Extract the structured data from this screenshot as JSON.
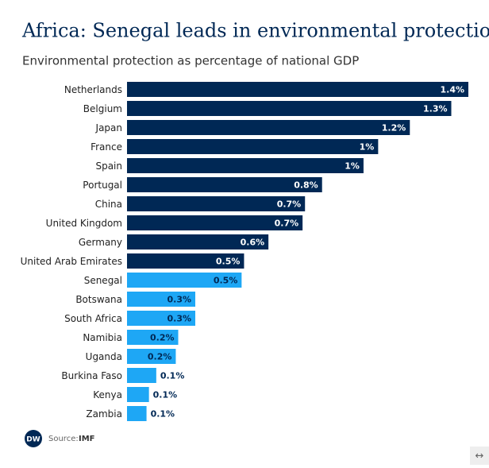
{
  "chart_data": {
    "type": "bar",
    "orientation": "horizontal",
    "title": "Africa: Senegal leads in environmental protection",
    "subtitle": "Environmental protection as percentage of national GDP",
    "categories": [
      "Netherlands",
      "Belgium",
      "Japan",
      "France",
      "Spain",
      "Portugal",
      "China",
      "United Kingdom",
      "Germany",
      "United Arab Emirates",
      "Senegal",
      "Botswana",
      "South Africa",
      "Namibia",
      "Uganda",
      "Burkina Faso",
      "Kenya",
      "Zambia"
    ],
    "values": [
      1.4,
      1.33,
      1.16,
      1.03,
      0.97,
      0.8,
      0.73,
      0.72,
      0.58,
      0.48,
      0.47,
      0.28,
      0.28,
      0.21,
      0.2,
      0.12,
      0.09,
      0.08
    ],
    "value_labels": [
      "1.4%",
      "1.3%",
      "1.2%",
      "1%",
      "1%",
      "0.8%",
      "0.7%",
      "0.7%",
      "0.6%",
      "0.5%",
      "0.5%",
      "0.3%",
      "0.3%",
      "0.2%",
      "0.2%",
      "0.1%",
      "0.1%",
      "0.1%"
    ],
    "colors": [
      "#002855",
      "#002855",
      "#002855",
      "#002855",
      "#002855",
      "#002855",
      "#002855",
      "#002855",
      "#002855",
      "#002855",
      "#1ea7f5",
      "#1ea7f5",
      "#1ea7f5",
      "#1ea7f5",
      "#1ea7f5",
      "#1ea7f5",
      "#1ea7f5",
      "#1ea7f5"
    ],
    "xlim": [
      0,
      1.4
    ],
    "logo": "DW",
    "source_label": "Source:",
    "source": "IMF"
  }
}
